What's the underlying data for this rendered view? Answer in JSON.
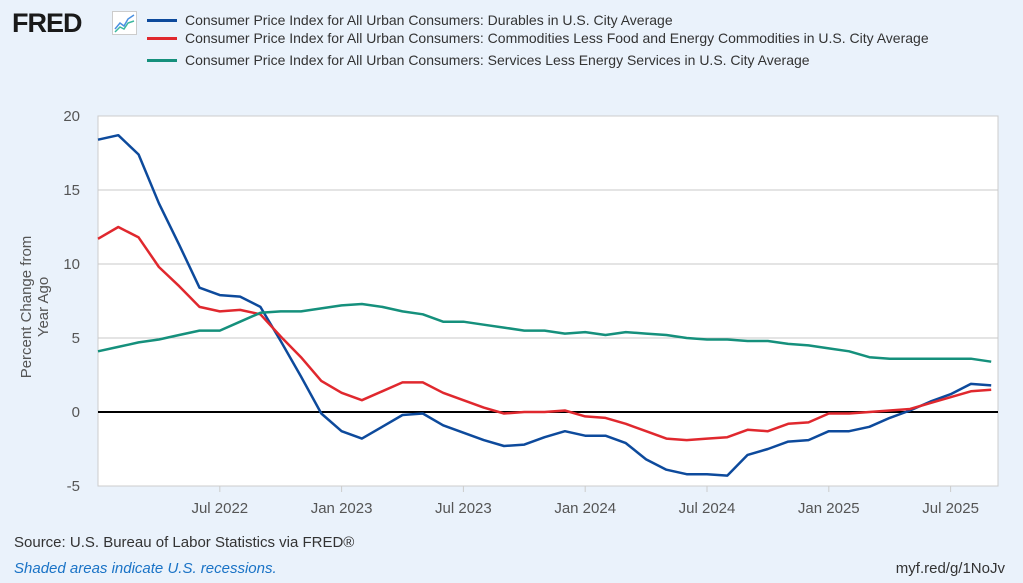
{
  "header": {
    "logo": "FRED",
    "logo_icon": "line-chart-icon"
  },
  "footer": {
    "source": "Source: U.S. Bureau of Labor Statistics via FRED®",
    "shaded": "Shaded areas indicate U.S. recessions.",
    "link": "myf.red/g/1NoJv"
  },
  "colors": {
    "durables": "#0d4a9c",
    "commodities": "#e0282e",
    "services": "#15907c",
    "background": "#eaf2fb"
  },
  "chart_data": {
    "type": "line",
    "ylabel": "Percent Change from Year Ago",
    "ylim": [
      -5,
      20
    ],
    "yticks": [
      -5,
      0,
      5,
      10,
      15,
      20
    ],
    "xticks": [
      "Jul 2022",
      "Jan 2023",
      "Jul 2023",
      "Jan 2024",
      "Jul 2024",
      "Jan 2025",
      "Jul 2025"
    ],
    "x_range": [
      "2022-01",
      "2025-09"
    ],
    "frequency": "monthly",
    "grid": true,
    "legend_placement": "top",
    "series": [
      {
        "name": "Consumer Price Index for All Urban Consumers: Durables in U.S. City Average",
        "color": "#0d4a9c",
        "values": [
          18.4,
          18.7,
          17.4,
          14.1,
          11.3,
          8.4,
          7.9,
          7.8,
          7.1,
          4.8,
          2.4,
          -0.1,
          -1.3,
          -1.8,
          -1.0,
          -0.2,
          -0.1,
          -0.9,
          -1.4,
          -1.9,
          -2.3,
          -2.2,
          -1.7,
          -1.3,
          -1.6,
          -1.6,
          -2.1,
          -3.2,
          -3.9,
          -4.2,
          -4.2,
          -4.3,
          -2.9,
          -2.5,
          -2.0,
          -1.9,
          -1.3,
          -1.3,
          -1.0,
          -0.4,
          0.1,
          0.7,
          1.2,
          1.9,
          1.8
        ]
      },
      {
        "name": "Consumer Price Index for All Urban Consumers: Commodities Less Food and Energy Commodities in U.S. City Average",
        "color": "#e0282e",
        "values": [
          11.7,
          12.5,
          11.8,
          9.8,
          8.5,
          7.1,
          6.8,
          6.9,
          6.6,
          5.1,
          3.7,
          2.1,
          1.3,
          0.8,
          1.4,
          2.0,
          2.0,
          1.3,
          0.8,
          0.3,
          -0.1,
          0.0,
          0.0,
          0.1,
          -0.3,
          -0.4,
          -0.8,
          -1.3,
          -1.8,
          -1.9,
          -1.8,
          -1.7,
          -1.2,
          -1.3,
          -0.8,
          -0.7,
          -0.1,
          -0.1,
          0.0,
          0.1,
          0.2,
          0.6,
          1.0,
          1.4,
          1.5
        ]
      },
      {
        "name": "Consumer Price Index for All Urban Consumers: Services Less Energy Services in U.S. City Average",
        "color": "#15907c",
        "values": [
          4.1,
          4.4,
          4.7,
          4.9,
          5.2,
          5.5,
          5.5,
          6.1,
          6.7,
          6.8,
          6.8,
          7.0,
          7.2,
          7.3,
          7.1,
          6.8,
          6.6,
          6.1,
          6.1,
          5.9,
          5.7,
          5.5,
          5.5,
          5.3,
          5.4,
          5.2,
          5.4,
          5.3,
          5.2,
          5.0,
          4.9,
          4.9,
          4.8,
          4.8,
          4.6,
          4.5,
          4.3,
          4.1,
          3.7,
          3.6,
          3.6,
          3.6,
          3.6,
          3.6,
          3.4
        ]
      }
    ]
  }
}
